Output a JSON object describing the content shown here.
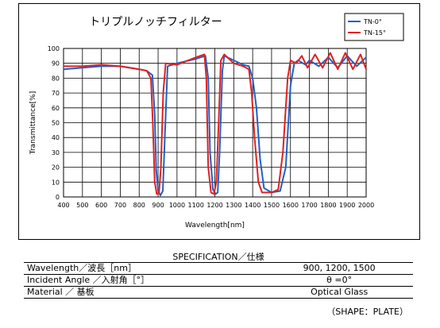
{
  "chart_data": {
    "type": "line",
    "title": "トリプルノッチフィルター",
    "xlabel": "Wavelength[nm]",
    "ylabel": "Transmittance[%]",
    "xlim": [
      400,
      2000
    ],
    "ylim": [
      0,
      100
    ],
    "xticks": [
      400,
      500,
      600,
      700,
      800,
      900,
      1000,
      1100,
      1200,
      1300,
      1400,
      1500,
      1600,
      1700,
      1800,
      1900,
      2000
    ],
    "yticks": [
      0,
      10,
      20,
      30,
      40,
      50,
      60,
      70,
      80,
      90,
      100
    ],
    "grid": true,
    "legend": "top-right",
    "series": [
      {
        "name": "TN-0°",
        "color": "#2060c8",
        "points": [
          [
            400,
            86
          ],
          [
            500,
            87
          ],
          [
            600,
            88
          ],
          [
            700,
            88
          ],
          [
            800,
            86
          ],
          [
            840,
            85
          ],
          [
            870,
            82
          ],
          [
            882,
            55
          ],
          [
            890,
            18
          ],
          [
            900,
            4
          ],
          [
            912,
            1
          ],
          [
            925,
            4
          ],
          [
            940,
            55
          ],
          [
            950,
            88
          ],
          [
            1000,
            90
          ],
          [
            1100,
            93
          ],
          [
            1150,
            95
          ],
          [
            1165,
            80
          ],
          [
            1175,
            30
          ],
          [
            1190,
            5
          ],
          [
            1205,
            2
          ],
          [
            1215,
            3
          ],
          [
            1225,
            30
          ],
          [
            1240,
            85
          ],
          [
            1250,
            95
          ],
          [
            1300,
            92
          ],
          [
            1350,
            89
          ],
          [
            1380,
            88
          ],
          [
            1400,
            80
          ],
          [
            1420,
            60
          ],
          [
            1440,
            25
          ],
          [
            1460,
            6
          ],
          [
            1500,
            3
          ],
          [
            1545,
            4
          ],
          [
            1575,
            20
          ],
          [
            1600,
            75
          ],
          [
            1620,
            90
          ],
          [
            1640,
            92
          ],
          [
            1680,
            89
          ],
          [
            1700,
            92
          ],
          [
            1750,
            88
          ],
          [
            1800,
            94
          ],
          [
            1850,
            87
          ],
          [
            1900,
            95
          ],
          [
            1950,
            88
          ],
          [
            2000,
            94
          ]
        ]
      },
      {
        "name": "TN-15°",
        "color": "#e02020",
        "points": [
          [
            400,
            88
          ],
          [
            500,
            88
          ],
          [
            600,
            89
          ],
          [
            700,
            88
          ],
          [
            800,
            86
          ],
          [
            840,
            85
          ],
          [
            862,
            80
          ],
          [
            872,
            50
          ],
          [
            882,
            10
          ],
          [
            893,
            2
          ],
          [
            905,
            3
          ],
          [
            915,
            20
          ],
          [
            927,
            70
          ],
          [
            940,
            90
          ],
          [
            1000,
            89
          ],
          [
            1100,
            94
          ],
          [
            1145,
            96
          ],
          [
            1155,
            80
          ],
          [
            1165,
            20
          ],
          [
            1180,
            3
          ],
          [
            1195,
            2
          ],
          [
            1208,
            10
          ],
          [
            1220,
            50
          ],
          [
            1232,
            92
          ],
          [
            1250,
            96
          ],
          [
            1300,
            90
          ],
          [
            1350,
            88
          ],
          [
            1380,
            86
          ],
          [
            1395,
            70
          ],
          [
            1410,
            40
          ],
          [
            1430,
            10
          ],
          [
            1450,
            3
          ],
          [
            1500,
            3
          ],
          [
            1535,
            5
          ],
          [
            1560,
            30
          ],
          [
            1585,
            80
          ],
          [
            1600,
            92
          ],
          [
            1630,
            90
          ],
          [
            1660,
            95
          ],
          [
            1690,
            87
          ],
          [
            1730,
            96
          ],
          [
            1770,
            87
          ],
          [
            1810,
            97
          ],
          [
            1850,
            86
          ],
          [
            1890,
            97
          ],
          [
            1930,
            86
          ],
          [
            1970,
            96
          ],
          [
            2000,
            86
          ]
        ]
      }
    ]
  },
  "spec": {
    "heading": "SPECIFICATION／仕様",
    "rows": [
      {
        "label": "Wavelength／波長［nm］",
        "value": "900,  1200,  1500"
      },
      {
        "label": "Incident Angle ／入射角［°］",
        "value": "θ =0°"
      },
      {
        "label": "Material ／ 基板",
        "value": "Optical Glass"
      }
    ],
    "shape_note": "（SHAPE：PLATE）"
  }
}
